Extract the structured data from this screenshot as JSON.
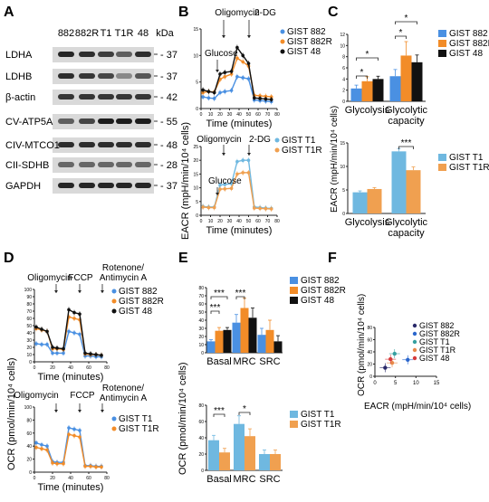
{
  "panels": {
    "A": "A",
    "B": "B",
    "C": "C",
    "D": "D",
    "E": "E",
    "F": "F"
  },
  "blot": {
    "lanes": [
      "882",
      "882R",
      "T1",
      "T1R",
      "48"
    ],
    "unit": "kDa",
    "rows": [
      {
        "label": "LDHA",
        "kda": "37",
        "bands": [
          0.9,
          0.85,
          0.75,
          0.55,
          0.85
        ]
      },
      {
        "label": "LDHB",
        "kda": "37",
        "bands": [
          0.85,
          0.8,
          0.7,
          0.3,
          0.6
        ]
      },
      {
        "label": "β-actin",
        "kda": "42",
        "bands": [
          0.8,
          0.8,
          0.8,
          0.8,
          0.8
        ]
      },
      {
        "label": "CV-ATP5A",
        "kda": "55",
        "bands": [
          0.55,
          0.7,
          0.95,
          0.95,
          0.95
        ]
      },
      {
        "label": "CIV-MTCO1",
        "kda": "48",
        "bands": [
          0.85,
          0.85,
          0.85,
          0.85,
          0.85
        ]
      },
      {
        "label": "CII-SDHB",
        "kda": "28",
        "bands": [
          0.5,
          0.5,
          0.5,
          0.5,
          0.5
        ]
      },
      {
        "label": "GAPDH",
        "kda": "37",
        "bands": [
          0.9,
          0.9,
          0.9,
          0.9,
          0.9
        ]
      }
    ]
  },
  "colors": {
    "g882": "#4a90e2",
    "g882R": "#f28c28",
    "g48": "#111111",
    "t1": "#6fb8e0",
    "t1r": "#f0a050",
    "f882": "#2a2a6a",
    "f882R": "#2a66cc",
    "ft1": "#35a0a0",
    "ft1r": "#e8894a",
    "f48": "#d63a3a"
  },
  "chart_data": [
    {
      "panel": "B-top",
      "type": "line",
      "ylabel": "",
      "xlabel": "Time (minutes)",
      "xlim": [
        0,
        80
      ],
      "ylim": [
        0,
        15
      ],
      "xticks": [
        0,
        10,
        20,
        30,
        40,
        50,
        60,
        70,
        80
      ],
      "yticks": [
        0,
        5,
        10,
        15
      ],
      "x": [
        2,
        8,
        14,
        20,
        25,
        32,
        38,
        44,
        50,
        56,
        62,
        68,
        74
      ],
      "annotations": [
        "Glucose",
        "Oligomycin",
        "2-DG"
      ],
      "series": [
        {
          "name": "GIST 882",
          "color": "#4a90e2",
          "values": [
            2.2,
            2.0,
            1.9,
            3.0,
            3.2,
            3.4,
            6.0,
            5.8,
            5.6,
            1.6,
            1.5,
            1.4,
            1.3
          ]
        },
        {
          "name": "GIST 882R",
          "color": "#f28c28",
          "values": [
            3.0,
            3.2,
            3.1,
            5.5,
            6.0,
            6.5,
            9.5,
            8.8,
            8.0,
            2.5,
            2.4,
            2.3,
            2.2
          ]
        },
        {
          "name": "GIST 48",
          "color": "#111111",
          "values": [
            3.5,
            3.2,
            3.0,
            6.5,
            6.8,
            7.0,
            11.5,
            10.0,
            8.5,
            2.0,
            1.9,
            1.8,
            1.7
          ]
        }
      ]
    },
    {
      "panel": "B-bottom",
      "type": "line",
      "ylabel": "",
      "xlabel": "Time (minutes)",
      "xlim": [
        0,
        80
      ],
      "ylim": [
        0,
        25
      ],
      "xticks": [
        0,
        10,
        20,
        30,
        40,
        50,
        60,
        70,
        80
      ],
      "yticks": [
        0,
        5,
        10,
        15,
        20,
        25
      ],
      "x": [
        2,
        8,
        14,
        20,
        25,
        32,
        38,
        44,
        50,
        56,
        62,
        68,
        74
      ],
      "annotations": [
        "Oligomycin",
        "2-DG",
        "Glucose"
      ],
      "series": [
        {
          "name": "GIST T1",
          "color": "#6fb8e0",
          "values": [
            3.2,
            3.0,
            3.0,
            11.0,
            11.2,
            11.5,
            19.5,
            20.0,
            20.0,
            3.0,
            2.8,
            2.6,
            2.5
          ]
        },
        {
          "name": "GIST T1R",
          "color": "#f0a050",
          "values": [
            3.0,
            2.8,
            2.8,
            9.5,
            9.6,
            9.8,
            15.0,
            15.5,
            15.5,
            2.6,
            2.5,
            2.4,
            2.3
          ]
        }
      ]
    },
    {
      "panel": "C-top",
      "type": "bar",
      "categories": [
        "Glycolysis",
        "Glycolytic capacity"
      ],
      "ylim": [
        0,
        12
      ],
      "yticks": [
        0,
        2,
        4,
        6,
        8,
        10,
        12
      ],
      "series": [
        {
          "name": "GIST 882",
          "color": "#4a90e2",
          "values": [
            2.3,
            4.5
          ],
          "err": [
            0.6,
            1.2
          ]
        },
        {
          "name": "GIST 882R",
          "color": "#f28c28",
          "values": [
            3.6,
            8.2
          ],
          "err": [
            0.8,
            2.5
          ]
        },
        {
          "name": "GIST 48",
          "color": "#111111",
          "values": [
            4.0,
            7.0
          ],
          "err": [
            0.5,
            1.3
          ]
        }
      ],
      "sig": [
        "*",
        "*",
        "*",
        "*"
      ]
    },
    {
      "panel": "C-bottom",
      "type": "bar",
      "categories": [
        "Glycolysis",
        "Glycolytic capacity"
      ],
      "ylim": [
        0,
        15
      ],
      "yticks": [
        0,
        5,
        10,
        15
      ],
      "series": [
        {
          "name": "GIST T1",
          "color": "#6fb8e0",
          "values": [
            4.5,
            13.2
          ],
          "err": [
            0.3,
            0.6
          ]
        },
        {
          "name": "GIST T1R",
          "color": "#f0a050",
          "values": [
            5.2,
            9.2
          ],
          "err": [
            0.3,
            0.7
          ]
        }
      ],
      "sig": [
        "***"
      ]
    },
    {
      "panel": "D-top",
      "type": "line",
      "xlabel": "Time (minutes)",
      "xlim": [
        0,
        80
      ],
      "ylim": [
        0,
        100
      ],
      "xticks": [
        0,
        20,
        40,
        60,
        80
      ],
      "yticks": [
        0,
        10,
        20,
        30,
        40,
        50,
        60,
        70,
        80,
        90,
        100
      ],
      "x": [
        2,
        8,
        14,
        20,
        25,
        32,
        38,
        44,
        50,
        56,
        62,
        68,
        74
      ],
      "annotations": [
        "Oligomycin",
        "FCCP",
        "Rotenone/ Antimycin A"
      ],
      "series": [
        {
          "name": "GIST 882",
          "color": "#4a90e2",
          "values": [
            25,
            24,
            24,
            12,
            12,
            12,
            42,
            40,
            38,
            8,
            8,
            7,
            7
          ]
        },
        {
          "name": "GIST 882R",
          "color": "#f28c28",
          "values": [
            46,
            44,
            42,
            18,
            18,
            17,
            62,
            60,
            58,
            11,
            10,
            10,
            9
          ]
        },
        {
          "name": "GIST 48",
          "color": "#111111",
          "values": [
            48,
            45,
            42,
            20,
            19,
            18,
            72,
            68,
            66,
            12,
            11,
            10,
            9
          ]
        }
      ]
    },
    {
      "panel": "D-bottom",
      "type": "line",
      "xlabel": "Time (minutes)",
      "xlim": [
        0,
        80
      ],
      "ylim": [
        0,
        100
      ],
      "xticks": [
        0,
        20,
        40,
        60,
        80
      ],
      "yticks": [
        0,
        20,
        40,
        60,
        80,
        100
      ],
      "x": [
        2,
        8,
        14,
        20,
        25,
        32,
        38,
        44,
        50,
        56,
        62,
        68,
        74
      ],
      "annotations": [
        "Oligomycin",
        "FCCP",
        "Rotenone/ Antimycin A"
      ],
      "series": [
        {
          "name": "GIST T1",
          "color": "#4a90e2",
          "values": [
            45,
            42,
            40,
            16,
            15,
            15,
            68,
            66,
            64,
            10,
            10,
            9,
            9
          ]
        },
        {
          "name": "GIST T1R",
          "color": "#f28c28",
          "values": [
            38,
            36,
            34,
            14,
            13,
            13,
            58,
            56,
            54,
            9,
            9,
            8,
            8
          ]
        }
      ]
    },
    {
      "panel": "E-top",
      "type": "bar",
      "categories": [
        "Basal",
        "MRC",
        "SRC"
      ],
      "ylim": [
        0,
        80
      ],
      "yticks": [
        0,
        10,
        20,
        30,
        40,
        50,
        60,
        70,
        80
      ],
      "series": [
        {
          "name": "GIST 882",
          "color": "#4a90e2",
          "values": [
            14,
            37,
            22
          ],
          "err": [
            2,
            10,
            8
          ]
        },
        {
          "name": "GIST 882R",
          "color": "#f28c28",
          "values": [
            27,
            55,
            28
          ],
          "err": [
            4,
            12,
            12
          ]
        },
        {
          "name": "GIST 48",
          "color": "#111111",
          "values": [
            28,
            43,
            14
          ],
          "err": [
            3,
            12,
            7
          ]
        }
      ],
      "sig": [
        "***",
        "***",
        "***"
      ]
    },
    {
      "panel": "E-bottom",
      "type": "bar",
      "categories": [
        "Basal",
        "MRC",
        "SRC"
      ],
      "ylim": [
        0,
        80
      ],
      "yticks": [
        0,
        20,
        40,
        60,
        80
      ],
      "series": [
        {
          "name": "GIST T1",
          "color": "#6fb8e0",
          "values": [
            37,
            57,
            20
          ],
          "err": [
            6,
            10,
            5
          ]
        },
        {
          "name": "GIST T1R",
          "color": "#f0a050",
          "values": [
            22,
            42,
            20
          ],
          "err": [
            5,
            9,
            5
          ]
        }
      ],
      "sig": [
        "***",
        "*"
      ]
    },
    {
      "panel": "F",
      "type": "scatter",
      "xlabel": "EACR (mpH/min/10⁴ cells)",
      "ylabel": "OCR (pmol/min/10⁴ cells)",
      "xlim": [
        0,
        15
      ],
      "ylim": [
        0,
        80
      ],
      "xticks": [
        0,
        5,
        10,
        15
      ],
      "yticks": [
        0,
        20,
        40,
        60,
        80
      ],
      "points": [
        {
          "name": "GIST 882",
          "color": "#2a2a6a",
          "x": 2.5,
          "y": 14
        },
        {
          "name": "GIST 882R",
          "color": "#2a66cc",
          "x": 8.0,
          "y": 27
        },
        {
          "name": "GIST T1",
          "color": "#35a0a0",
          "x": 4.8,
          "y": 37
        },
        {
          "name": "GIST T1R",
          "color": "#e8894a",
          "x": 4.2,
          "y": 22
        },
        {
          "name": "GIST 48",
          "color": "#d63a3a",
          "x": 3.8,
          "y": 28
        }
      ]
    }
  ],
  "text": {
    "time": "Time (minutes)",
    "eacr_axis": "EACR (mpH/min/10⁴ cells)",
    "ocr_axis": "OCR (pmol/min/10⁴ cells)",
    "glucose": "Glucose",
    "oligomycin": "Oligomycin",
    "dg": "2-DG",
    "fccp": "FCCP",
    "roten1": "Rotenone/",
    "roten2": "Antimycin A",
    "glycolysis": "Glycolysis",
    "glyc_cap1": "Glycolytic",
    "glyc_cap2": "capacity",
    "basal": "Basal",
    "mrc": "MRC",
    "src": "SRC"
  }
}
